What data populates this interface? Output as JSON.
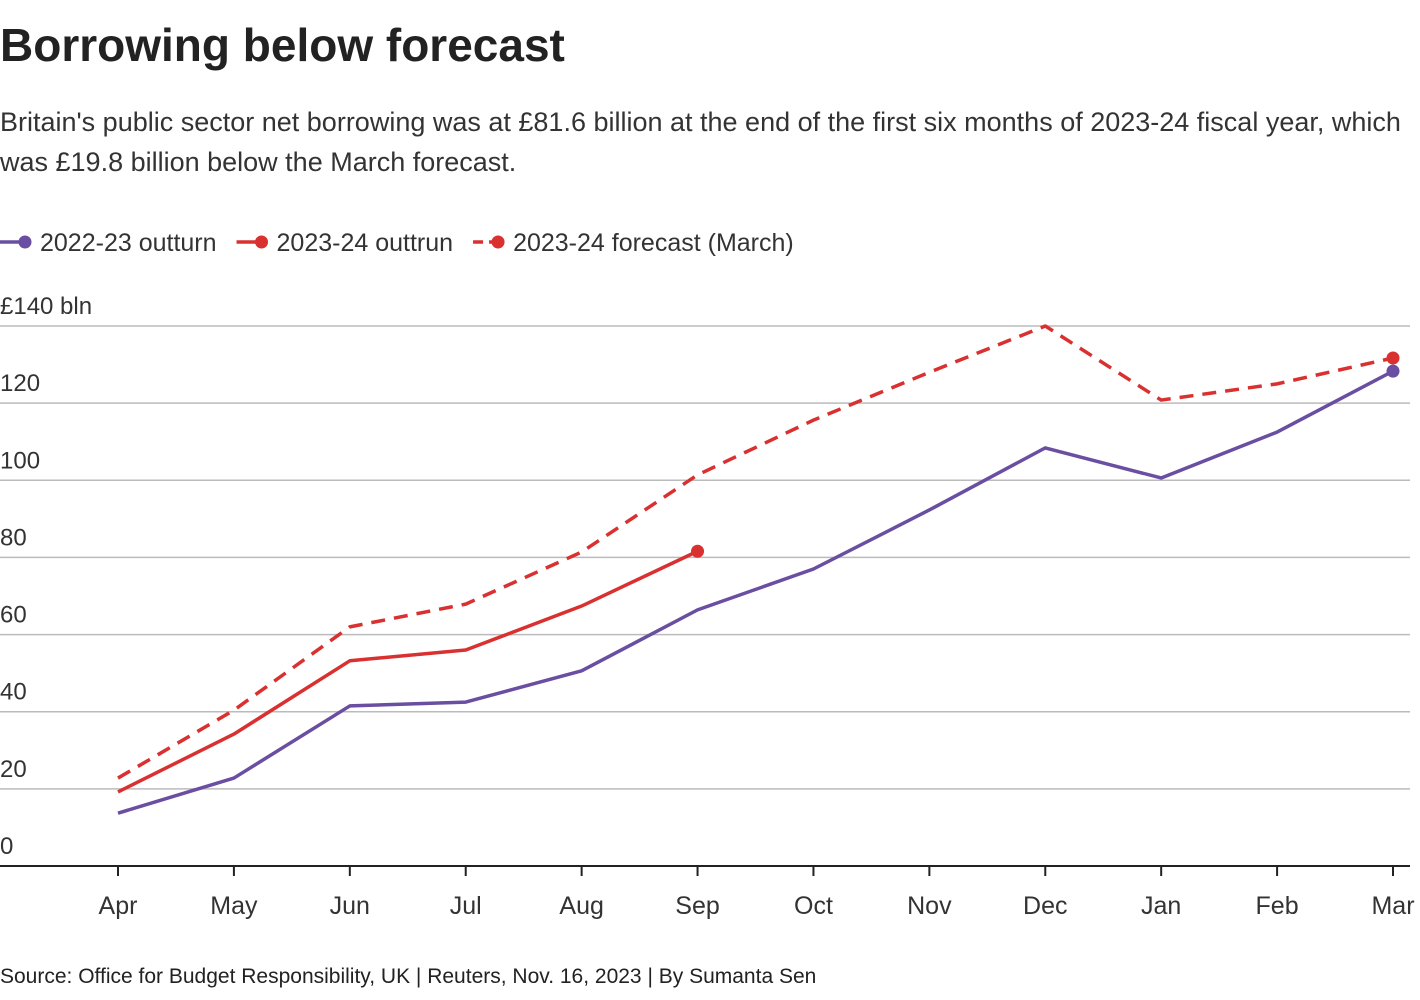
{
  "chart_data": {
    "type": "line",
    "title": "Borrowing below forecast",
    "subtitle": "Britain's public sector net borrowing was at £81.6 billion at the end of the first six months of 2023-24 fiscal year, which was £19.8 billion below the March forecast.",
    "source": "Source: Office for Budget Responsibility, UK | Reuters, Nov. 16, 2023 | By Sumanta Sen",
    "categories": [
      "Apr",
      "May",
      "Jun",
      "Jul",
      "Aug",
      "Sep",
      "Oct",
      "Nov",
      "Dec",
      "Jan",
      "Feb",
      "Mar"
    ],
    "series": [
      {
        "name": "2022-23 outturn",
        "color": "#6a4ea1",
        "dash": false,
        "values": [
          13.7,
          22.8,
          41.5,
          42.5,
          50.6,
          66.4,
          77,
          92.3,
          108.4,
          100.6,
          112.5,
          128.3
        ]
      },
      {
        "name": "2023-24 outtrun",
        "color": "#d93030",
        "dash": false,
        "values": [
          19.2,
          34.2,
          53.2,
          56,
          67.4,
          81.6,
          null,
          null,
          null,
          null,
          null,
          null
        ]
      },
      {
        "name": "2023-24 forecast (March)",
        "color": "#d93030",
        "dash": true,
        "values": [
          22.8,
          40.4,
          62,
          67.9,
          81.4,
          101.4,
          115.6,
          128,
          140,
          120.8,
          125,
          131.7
        ]
      }
    ],
    "ylim": [
      0,
      140
    ],
    "yticks": [
      0,
      20,
      40,
      60,
      80,
      100,
      120,
      {
        "value": 140,
        "label": "£140 bln"
      }
    ],
    "grid": true,
    "legend": "top-left"
  }
}
